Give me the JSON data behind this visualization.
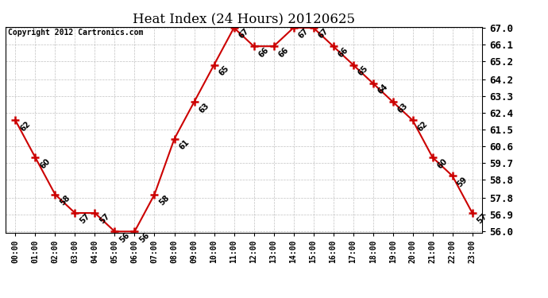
{
  "title": "Heat Index (24 Hours) 20120625",
  "copyright": "Copyright 2012 Cartronics.com",
  "hours": [
    0,
    1,
    2,
    3,
    4,
    5,
    6,
    7,
    8,
    9,
    10,
    11,
    12,
    13,
    14,
    15,
    16,
    17,
    18,
    19,
    20,
    21,
    22,
    23
  ],
  "values": [
    62,
    60,
    58,
    57,
    57,
    56,
    56,
    58,
    61,
    63,
    65,
    67,
    66,
    66,
    67,
    67,
    66,
    65,
    64,
    63,
    62,
    60,
    59,
    57
  ],
  "xlabels": [
    "00:00",
    "01:00",
    "02:00",
    "03:00",
    "04:00",
    "05:00",
    "06:00",
    "07:00",
    "08:00",
    "09:00",
    "10:00",
    "11:00",
    "12:00",
    "13:00",
    "14:00",
    "15:00",
    "16:00",
    "17:00",
    "18:00",
    "19:00",
    "20:00",
    "21:00",
    "22:00",
    "23:00"
  ],
  "ymin": 56.0,
  "ymax": 67.0,
  "yticks": [
    56.0,
    56.9,
    57.8,
    58.8,
    59.7,
    60.6,
    61.5,
    62.4,
    63.3,
    64.2,
    65.2,
    66.1,
    67.0
  ],
  "line_color": "#cc0000",
  "marker_color": "#cc0000",
  "bg_color": "#ffffff",
  "grid_color": "#bbbbbb",
  "title_fontsize": 12,
  "ylabel_fontsize": 9,
  "xlabel_fontsize": 7,
  "annotation_fontsize": 7,
  "copyright_fontsize": 7
}
